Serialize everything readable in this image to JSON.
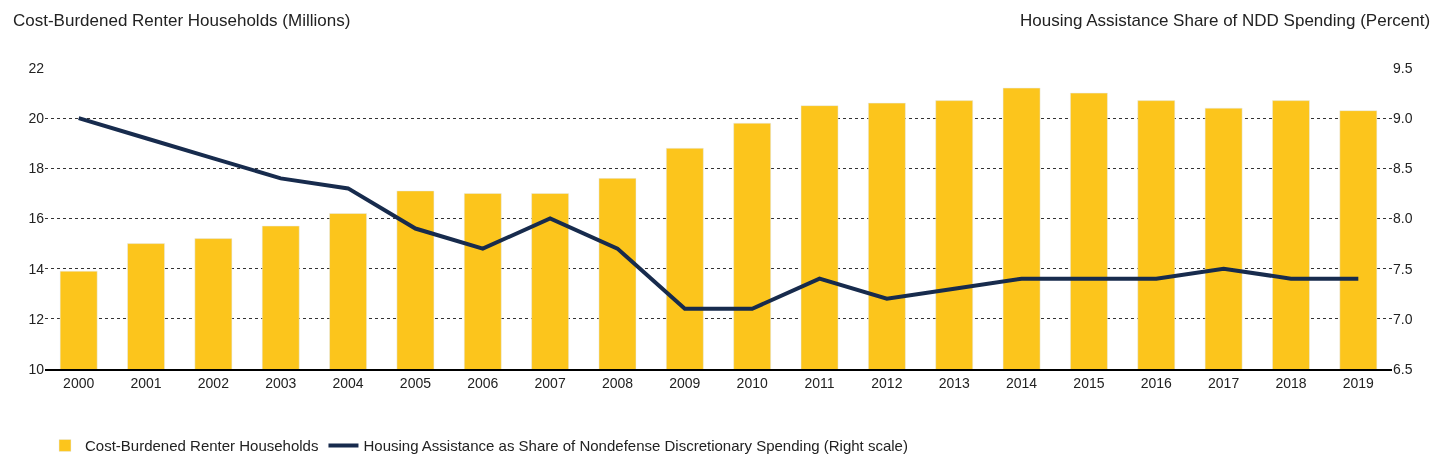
{
  "chart_data": {
    "type": "bar",
    "ylabel": "Cost-Burdened Renter Households (Millions)",
    "y2label": "Housing Assistance Share of NDD Spending (Percent)",
    "categories": [
      "2000",
      "2001",
      "2002",
      "2003",
      "2004",
      "2005",
      "2006",
      "2007",
      "2008",
      "2009",
      "2010",
      "2011",
      "2012",
      "2013",
      "2014",
      "2015",
      "2016",
      "2017",
      "2018",
      "2019"
    ],
    "series": [
      {
        "name": "Cost-Burdened Renter Households",
        "color": "#fcc51c",
        "values": [
          13.9,
          15.0,
          15.2,
          15.7,
          16.2,
          17.1,
          17.0,
          17.0,
          17.6,
          18.8,
          19.8,
          20.5,
          20.6,
          20.7,
          21.2,
          21.0,
          20.7,
          20.4,
          20.7,
          20.3
        ]
      },
      {
        "name": "Housing Assistance as Share of Nondefense Discretionary Spending (Right scale)",
        "type": "line",
        "axis": "y2",
        "color": "#172b4d",
        "values": [
          9.0,
          8.8,
          8.6,
          8.4,
          8.3,
          7.9,
          7.7,
          8.0,
          7.7,
          7.1,
          7.1,
          7.4,
          7.2,
          7.3,
          7.4,
          7.4,
          7.4,
          7.5,
          7.4,
          7.4
        ]
      }
    ],
    "ylim": [
      10,
      22
    ],
    "yticks": [
      10,
      12,
      14,
      16,
      18,
      20,
      22
    ],
    "y2lim": [
      6.5,
      9.5
    ],
    "y2ticks": [
      {
        "value": 6.5,
        "label": "6.5"
      },
      {
        "value": 7.0,
        "label": "7.0"
      },
      {
        "value": 7.5,
        "label": "7.5"
      },
      {
        "value": 8.0,
        "label": "8.0"
      },
      {
        "value": 8.5,
        "label": "8.5"
      },
      {
        "value": 9.0,
        "label": "9.0"
      },
      {
        "value": 9.5,
        "label": "9.5"
      }
    ],
    "grid": "y",
    "legend": "bottom left",
    "marker": "none",
    "line_style": "solid"
  }
}
